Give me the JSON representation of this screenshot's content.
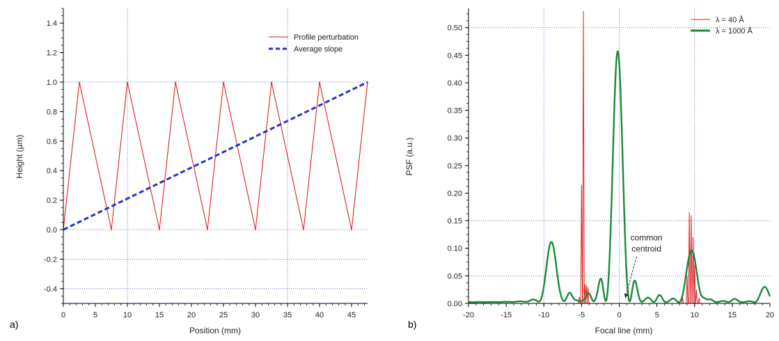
{
  "chart_data": [
    {
      "type": "line",
      "panel_label": "a)",
      "title": "",
      "xlabel": "Position (mm)",
      "ylabel": "Height (µm)",
      "xlim": [
        0,
        47.5
      ],
      "ylim": [
        -0.5,
        1.5
      ],
      "xticks": [
        0,
        5,
        10,
        15,
        20,
        25,
        30,
        35,
        40,
        45
      ],
      "yticks": [
        -0.4,
        -0.2,
        0.0,
        0.2,
        0.4,
        0.6,
        0.8,
        1.0,
        1.2,
        1.4
      ],
      "grid_x": [
        10,
        35
      ],
      "grid_y": [
        -0.4,
        -0.2,
        0.0,
        1.0
      ],
      "legend_position": "top-right",
      "series": [
        {
          "name": "Profile perturbation",
          "color": "#e02020",
          "style": "solid",
          "x": [
            0,
            2.5,
            7.5,
            10,
            15,
            17.5,
            22.5,
            25,
            30,
            32.5,
            37.5,
            40,
            45,
            47.5
          ],
          "y": [
            0,
            1,
            0,
            1,
            0,
            1,
            0,
            1,
            0,
            1,
            0,
            1,
            0,
            1
          ]
        },
        {
          "name": "Average slope",
          "color": "#2233cc",
          "style": "dashed",
          "x": [
            0,
            47.5
          ],
          "y": [
            0,
            1
          ]
        }
      ]
    },
    {
      "type": "line",
      "panel_label": "b)",
      "title": "",
      "xlabel": "Focal line (mm)",
      "ylabel": "PSF (a.u.)",
      "xlim": [
        -20,
        20
      ],
      "ylim": [
        0,
        0.535
      ],
      "xticks": [
        -20,
        -15,
        -10,
        -5,
        0,
        5,
        10,
        15,
        20
      ],
      "yticks": [
        0.0,
        0.05,
        0.1,
        0.15,
        0.2,
        0.25,
        0.3,
        0.35,
        0.4,
        0.45,
        0.5
      ],
      "ytick_labels": [
        "0.00",
        "0.05",
        "0.10",
        "0.15",
        "0.20",
        "0.25",
        "0.30",
        "0.35",
        "0.40",
        "0.45",
        "0.50"
      ],
      "grid_x": [
        -10,
        0,
        10
      ],
      "grid_y": [
        0.05,
        0.15,
        0.5
      ],
      "legend_position": "top-right",
      "annotation": {
        "text_lines": [
          "common",
          "centroid"
        ],
        "x": 2.5,
        "y": 0.095,
        "arrow_to": [
          0.8,
          0.01
        ]
      },
      "series": [
        {
          "name": "λ = 40 Å",
          "color": "#e02020",
          "spikes": [
            {
              "x": -5.0,
              "y": 0.215
            },
            {
              "x": -4.75,
              "y": 0.53
            },
            {
              "x": -4.55,
              "y": 0.035
            },
            {
              "x": -4.35,
              "y": 0.033
            },
            {
              "x": -4.15,
              "y": 0.03
            },
            {
              "x": -5.3,
              "y": 0.012
            },
            {
              "x": 8.4,
              "y": 0.012
            },
            {
              "x": 9.0,
              "y": 0.05
            },
            {
              "x": 9.3,
              "y": 0.165
            },
            {
              "x": 9.55,
              "y": 0.16
            },
            {
              "x": 9.8,
              "y": 0.12
            },
            {
              "x": 10.0,
              "y": 0.07
            },
            {
              "x": 10.25,
              "y": 0.025
            },
            {
              "x": 10.6,
              "y": 0.01
            }
          ]
        },
        {
          "name": "λ = 1000 Å",
          "color": "#1a8a3a",
          "peaks": [
            {
              "center": -9.0,
              "height": 0.108,
              "width": 0.75
            },
            {
              "center": -0.2,
              "height": 0.455,
              "width": 0.72
            },
            {
              "center": 9.6,
              "height": 0.094,
              "width": 0.75
            },
            {
              "center": 19.3,
              "height": 0.028,
              "width": 0.6
            },
            {
              "center": -2.4,
              "height": 0.022,
              "width": 0.35
            },
            {
              "center": 2.0,
              "height": 0.018,
              "width": 0.35
            },
            {
              "center": -6.6,
              "height": 0.012,
              "width": 0.35
            },
            {
              "center": -4.0,
              "height": 0.01,
              "width": 0.3
            },
            {
              "center": 5.3,
              "height": 0.008,
              "width": 0.35
            },
            {
              "center": 11.2,
              "height": 0.008,
              "width": 0.35
            },
            {
              "center": 15.3,
              "height": 0.005,
              "width": 0.4
            }
          ]
        }
      ]
    }
  ]
}
